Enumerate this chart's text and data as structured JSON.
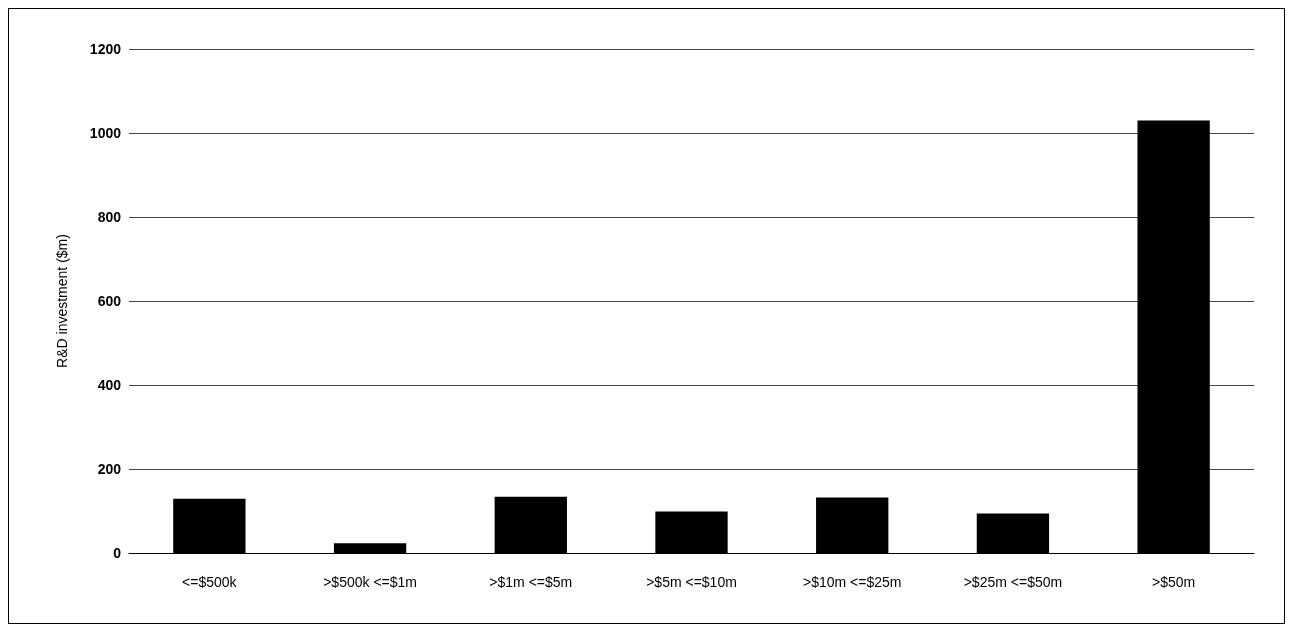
{
  "chart_data": {
    "type": "bar",
    "ylabel": "R&D investment ($m)",
    "categories": [
      "<=$500k",
      ">$500k <=$1m",
      ">$1m <=$5m",
      ">$5m <=$10m",
      ">$10m <=$25m",
      ">$25m <=$50m",
      ">$50m"
    ],
    "values": [
      129,
      23,
      134,
      99,
      132,
      94,
      1030
    ],
    "color": "#000000",
    "ylim": [
      0,
      1200
    ],
    "yticks": [
      0,
      200,
      400,
      600,
      800,
      1000,
      1200
    ],
    "grid": "y"
  }
}
